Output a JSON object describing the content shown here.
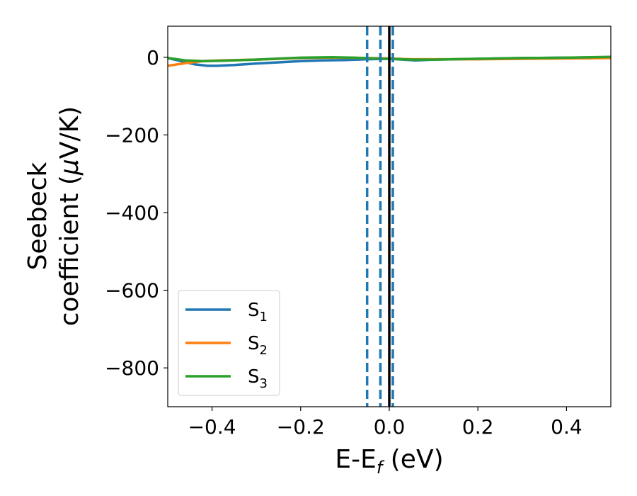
{
  "chart_data": {
    "type": "line",
    "title": "",
    "xlabel": "E-E",
    "xlabel_sub": "f",
    "xlabel_unit": " (eV)",
    "ylabel_line1": "Seebeck",
    "ylabel_line2": "coefficient  (",
    "ylabel_mu": "μ",
    "ylabel_unit": "V/K)",
    "xlim": [
      -0.5,
      0.5
    ],
    "ylim": [
      -900,
      80
    ],
    "xticks": [
      -0.4,
      -0.2,
      0.0,
      0.2,
      0.4
    ],
    "xtick_labels": [
      "−0.4",
      "−0.2",
      "0.0",
      "0.2",
      "0.4"
    ],
    "yticks": [
      0,
      -200,
      -400,
      -600,
      -800
    ],
    "ytick_labels": [
      "0",
      "−200",
      "−400",
      "−600",
      "−800"
    ],
    "grid": false,
    "legend_position": "lower-left",
    "series": [
      {
        "name": "S",
        "sub": "1",
        "color": "#1f77b4",
        "x": [
          -0.5,
          -0.47,
          -0.44,
          -0.41,
          -0.39,
          -0.35,
          -0.3,
          -0.25,
          -0.2,
          -0.15,
          -0.1,
          -0.05,
          0.0,
          0.03,
          0.06,
          0.1,
          0.2,
          0.3,
          0.4,
          0.5
        ],
        "y": [
          -2,
          -10,
          -18,
          -22,
          -22,
          -20,
          -16,
          -13,
          -10,
          -8,
          -7,
          -5,
          -4,
          -6,
          -8,
          -6,
          -4,
          -2,
          -1,
          0
        ]
      },
      {
        "name": "S",
        "sub": "2",
        "color": "#ff7f0e",
        "x": [
          -0.5,
          -0.46,
          -0.42,
          -0.38,
          -0.3,
          -0.2,
          -0.15,
          -0.1,
          -0.05,
          0.0,
          0.05,
          0.1,
          0.2,
          0.3,
          0.4,
          0.5
        ],
        "y": [
          -22,
          -15,
          -10,
          -8,
          -6,
          -2,
          -1,
          -1,
          -2,
          -3,
          -5,
          -5,
          -5,
          -4,
          -3,
          -2
        ]
      },
      {
        "name": "S",
        "sub": "3",
        "color": "#2ca02c",
        "x": [
          -0.5,
          -0.46,
          -0.42,
          -0.38,
          -0.3,
          -0.2,
          -0.13,
          -0.08,
          -0.03,
          0.0,
          0.05,
          0.1,
          0.2,
          0.3,
          0.4,
          0.5
        ],
        "y": [
          -2,
          -8,
          -10,
          -9,
          -6,
          -1,
          0,
          -1,
          -3,
          -4,
          -6,
          -6,
          -4,
          -2,
          -1,
          1
        ]
      }
    ],
    "vlines": [
      {
        "x": -0.05,
        "style": "dashed",
        "color": "#1f77b4"
      },
      {
        "x": -0.02,
        "style": "dashed",
        "color": "#1f77b4"
      },
      {
        "x": 0.008,
        "style": "dashed",
        "color": "#1f77b4"
      },
      {
        "x": 0.0,
        "style": "solid",
        "color": "#000000"
      }
    ]
  }
}
